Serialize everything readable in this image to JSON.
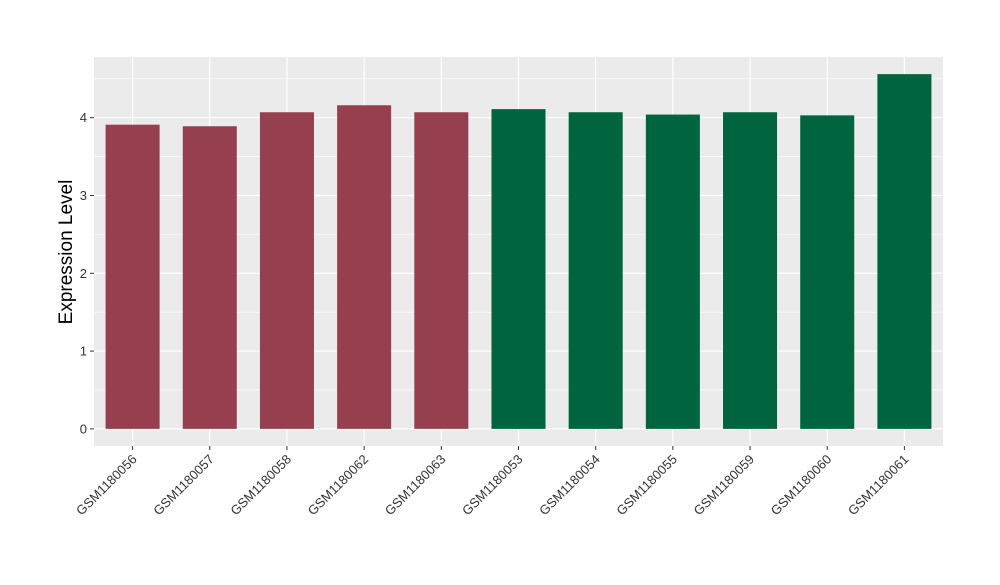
{
  "chart_data": {
    "type": "bar",
    "title": "",
    "xlabel": "",
    "ylabel": "Expression Level",
    "categories": [
      "GSM1180056",
      "GSM1180057",
      "GSM1180058",
      "GSM1180062",
      "GSM1180063",
      "GSM1180053",
      "GSM1180054",
      "GSM1180055",
      "GSM1180059",
      "GSM1180060",
      "GSM1180061"
    ],
    "values": [
      3.91,
      3.89,
      4.07,
      4.16,
      4.07,
      4.11,
      4.07,
      4.04,
      4.07,
      4.03,
      4.56
    ],
    "bar_colors": [
      "#96404f",
      "#96404f",
      "#96404f",
      "#96404f",
      "#96404f",
      "#00653f",
      "#00653f",
      "#00653f",
      "#00653f",
      "#00653f",
      "#00653f"
    ],
    "yticks": [
      "0",
      "1",
      "2",
      "3",
      "4"
    ],
    "ylim": [
      -0.22,
      4.78
    ],
    "grid": true,
    "legend": "none",
    "panel_background": "#ebebeb",
    "grid_color": "#ffffff"
  }
}
